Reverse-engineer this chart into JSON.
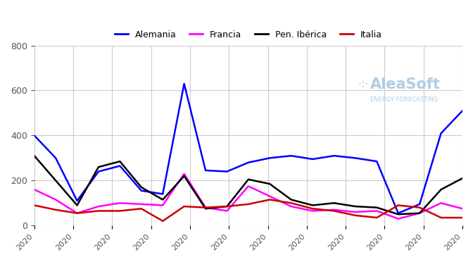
{
  "title": "",
  "legend_labels": [
    "Alemania",
    "Francia",
    "Pen. Ibérica",
    "Italia"
  ],
  "legend_colors": [
    "#0000ff",
    "#ff00ff",
    "#000000",
    "#cc0000"
  ],
  "x_labels": [
    "2020",
    "2020",
    "2020",
    "2020",
    "2020",
    "2020",
    "2020",
    "2020",
    "2020",
    "2020",
    "2020",
    "2020"
  ],
  "alemania": [
    400,
    300,
    110,
    240,
    265,
    155,
    140,
    630,
    245,
    240,
    280,
    300,
    310,
    295,
    310,
    300,
    285,
    55,
    95,
    410,
    510
  ],
  "francia": [
    160,
    115,
    55,
    85,
    100,
    95,
    90,
    230,
    80,
    65,
    175,
    130,
    85,
    65,
    70,
    60,
    65,
    30,
    55,
    100,
    75
  ],
  "pen_iberica": [
    310,
    200,
    90,
    260,
    285,
    170,
    115,
    220,
    75,
    85,
    205,
    185,
    115,
    90,
    100,
    85,
    80,
    50,
    55,
    160,
    210
  ],
  "italia": [
    90,
    70,
    55,
    65,
    65,
    75,
    20,
    85,
    80,
    85,
    95,
    115,
    100,
    75,
    65,
    45,
    35,
    90,
    80,
    35,
    35
  ],
  "ylim": [
    0,
    800
  ],
  "yticks": [
    0,
    200,
    400,
    600,
    800
  ],
  "watermark_text": "AleaSoft",
  "watermark_sub": "ENERGY FORECASTING",
  "bg_color": "#ffffff",
  "grid_color": "#cccccc"
}
